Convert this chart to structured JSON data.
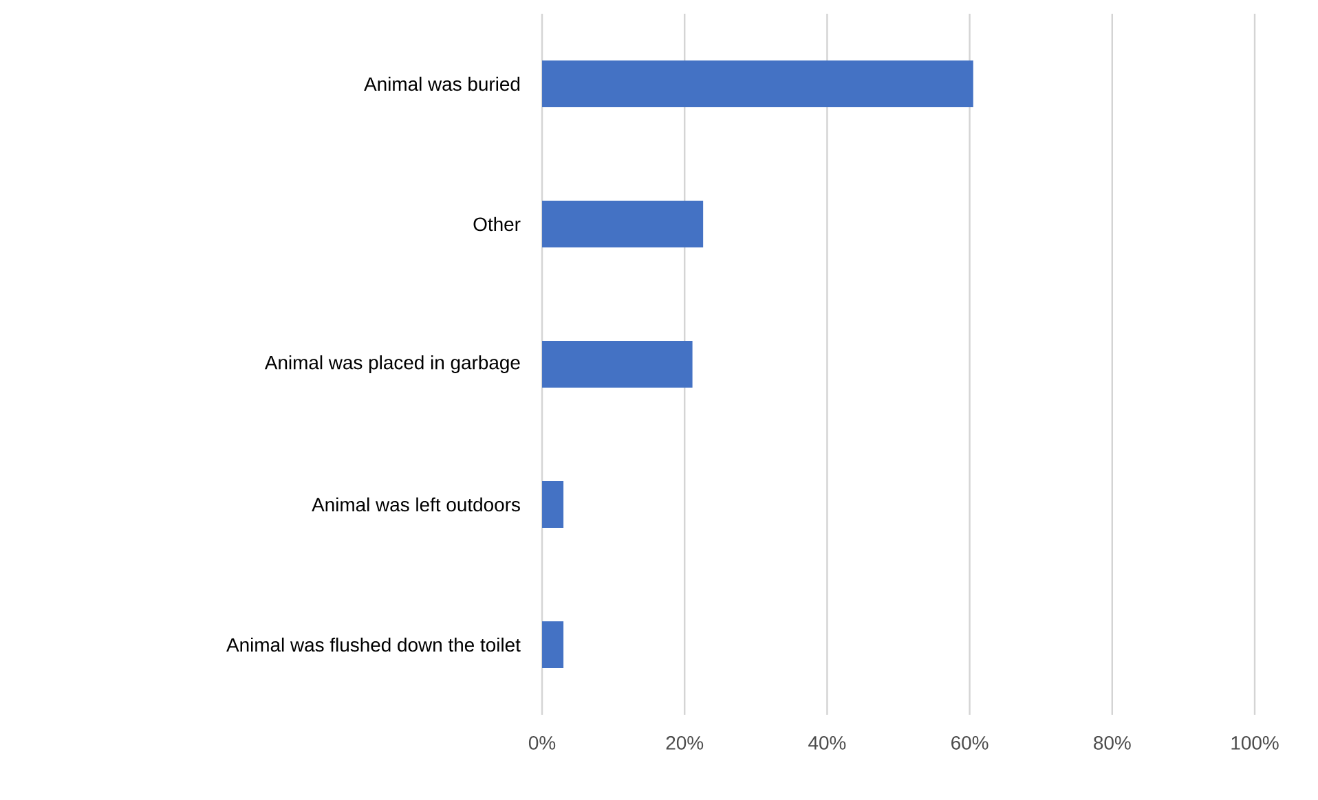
{
  "chart_data": {
    "type": "bar",
    "orientation": "horizontal",
    "categories": [
      "Animal was buried",
      "Other",
      "Animal was placed in garbage",
      "Animal was left outdoors",
      "Animal was flushed down the toilet"
    ],
    "values": [
      60.5,
      22.6,
      21.1,
      3.0,
      3.0
    ],
    "color": "#4472c4",
    "xlim": [
      0,
      100
    ],
    "xticks": [
      {
        "value": 0,
        "label": "0%"
      },
      {
        "value": 20,
        "label": "20%"
      },
      {
        "value": 40,
        "label": "40%"
      },
      {
        "value": 60,
        "label": "60%"
      },
      {
        "value": 80,
        "label": "80%"
      },
      {
        "value": 100,
        "label": "100%"
      }
    ],
    "grid": "x"
  }
}
